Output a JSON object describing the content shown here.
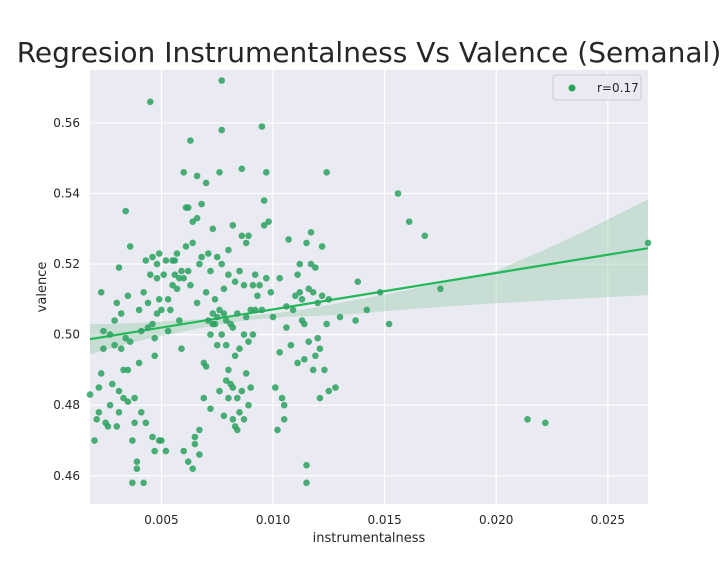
{
  "chart_data": {
    "type": "scatter",
    "title": "Regresion Instrumentalness Vs Valence (Semanal)",
    "xlabel": "instrumentalness",
    "ylabel": "valence",
    "xlim": [
      0.0018,
      0.0268
    ],
    "ylim": [
      0.452,
      0.575
    ],
    "xticks": [
      0.005,
      0.01,
      0.015,
      0.02,
      0.025
    ],
    "xtick_labels": [
      "0.005",
      "0.010",
      "0.015",
      "0.020",
      "0.025"
    ],
    "yticks": [
      0.46,
      0.48,
      0.5,
      0.52,
      0.54,
      0.56
    ],
    "ytick_labels": [
      "0.46",
      "0.48",
      "0.50",
      "0.52",
      "0.54",
      "0.56"
    ],
    "grid": true,
    "legend_position": "top-right",
    "point_color": "#2ca25f",
    "line_color": "#21b957",
    "band_color": "#9fcfb0",
    "series": [
      {
        "name": "r=0.17",
        "points": [
          [
            0.0018,
            0.483
          ],
          [
            0.002,
            0.47
          ],
          [
            0.0021,
            0.476
          ],
          [
            0.0022,
            0.478
          ],
          [
            0.0022,
            0.485
          ],
          [
            0.0023,
            0.489
          ],
          [
            0.0023,
            0.512
          ],
          [
            0.0024,
            0.496
          ],
          [
            0.0024,
            0.501
          ],
          [
            0.0025,
            0.475
          ],
          [
            0.0026,
            0.474
          ],
          [
            0.0027,
            0.48
          ],
          [
            0.0027,
            0.5
          ],
          [
            0.0028,
            0.486
          ],
          [
            0.0029,
            0.497
          ],
          [
            0.0029,
            0.504
          ],
          [
            0.003,
            0.474
          ],
          [
            0.003,
            0.509
          ],
          [
            0.0031,
            0.478
          ],
          [
            0.0031,
            0.484
          ],
          [
            0.0031,
            0.519
          ],
          [
            0.0032,
            0.496
          ],
          [
            0.0032,
            0.506
          ],
          [
            0.0033,
            0.482
          ],
          [
            0.0033,
            0.49
          ],
          [
            0.0034,
            0.499
          ],
          [
            0.0034,
            0.535
          ],
          [
            0.0035,
            0.481
          ],
          [
            0.0035,
            0.49
          ],
          [
            0.0035,
            0.511
          ],
          [
            0.0036,
            0.498
          ],
          [
            0.0036,
            0.525
          ],
          [
            0.0037,
            0.458
          ],
          [
            0.0037,
            0.47
          ],
          [
            0.0038,
            0.475
          ],
          [
            0.0038,
            0.482
          ],
          [
            0.0039,
            0.462
          ],
          [
            0.0039,
            0.464
          ],
          [
            0.004,
            0.492
          ],
          [
            0.004,
            0.507
          ],
          [
            0.0041,
            0.478
          ],
          [
            0.0041,
            0.501
          ],
          [
            0.0042,
            0.458
          ],
          [
            0.0042,
            0.512
          ],
          [
            0.0043,
            0.475
          ],
          [
            0.0043,
            0.521
          ],
          [
            0.0044,
            0.502
          ],
          [
            0.0044,
            0.509
          ],
          [
            0.0045,
            0.517
          ],
          [
            0.0045,
            0.566
          ],
          [
            0.0046,
            0.471
          ],
          [
            0.0046,
            0.503
          ],
          [
            0.0046,
            0.522
          ],
          [
            0.0047,
            0.467
          ],
          [
            0.0047,
            0.494
          ],
          [
            0.0047,
            0.499
          ],
          [
            0.0048,
            0.506
          ],
          [
            0.0048,
            0.516
          ],
          [
            0.0048,
            0.52
          ],
          [
            0.0049,
            0.47
          ],
          [
            0.0049,
            0.51
          ],
          [
            0.0049,
            0.523
          ],
          [
            0.005,
            0.47
          ],
          [
            0.005,
            0.507
          ],
          [
            0.0051,
            0.517
          ],
          [
            0.0052,
            0.467
          ],
          [
            0.0052,
            0.521
          ],
          [
            0.0053,
            0.501
          ],
          [
            0.0053,
            0.51
          ],
          [
            0.0054,
            0.507
          ],
          [
            0.0055,
            0.514
          ],
          [
            0.0055,
            0.521
          ],
          [
            0.0056,
            0.517
          ],
          [
            0.0056,
            0.521
          ],
          [
            0.0057,
            0.513
          ],
          [
            0.0057,
            0.523
          ],
          [
            0.0058,
            0.504
          ],
          [
            0.0058,
            0.516
          ],
          [
            0.0059,
            0.496
          ],
          [
            0.0059,
            0.518
          ],
          [
            0.006,
            0.467
          ],
          [
            0.006,
            0.516
          ],
          [
            0.006,
            0.546
          ],
          [
            0.0061,
            0.525
          ],
          [
            0.0061,
            0.536
          ],
          [
            0.0062,
            0.464
          ],
          [
            0.0062,
            0.518
          ],
          [
            0.0062,
            0.536
          ],
          [
            0.0063,
            0.555
          ],
          [
            0.0063,
            0.514
          ],
          [
            0.0064,
            0.462
          ],
          [
            0.0064,
            0.526
          ],
          [
            0.0064,
            0.532
          ],
          [
            0.0065,
            0.469
          ],
          [
            0.0065,
            0.471
          ],
          [
            0.0066,
            0.509
          ],
          [
            0.0066,
            0.533
          ],
          [
            0.0066,
            0.545
          ],
          [
            0.0067,
            0.466
          ],
          [
            0.0067,
            0.473
          ],
          [
            0.0067,
            0.52
          ],
          [
            0.0068,
            0.522
          ],
          [
            0.0068,
            0.537
          ],
          [
            0.0069,
            0.482
          ],
          [
            0.0069,
            0.492
          ],
          [
            0.007,
            0.491
          ],
          [
            0.007,
            0.512
          ],
          [
            0.007,
            0.543
          ],
          [
            0.0071,
            0.504
          ],
          [
            0.0071,
            0.523
          ],
          [
            0.0072,
            0.479
          ],
          [
            0.0072,
            0.5
          ],
          [
            0.0072,
            0.518
          ],
          [
            0.0073,
            0.503
          ],
          [
            0.0073,
            0.506
          ],
          [
            0.0073,
            0.53
          ],
          [
            0.0074,
            0.503
          ],
          [
            0.0074,
            0.51
          ],
          [
            0.0075,
            0.497
          ],
          [
            0.0075,
            0.505
          ],
          [
            0.0075,
            0.522
          ],
          [
            0.0076,
            0.484
          ],
          [
            0.0076,
            0.507
          ],
          [
            0.0076,
            0.546
          ],
          [
            0.0077,
            0.5
          ],
          [
            0.0077,
            0.52
          ],
          [
            0.0077,
            0.558
          ],
          [
            0.0077,
            0.572
          ],
          [
            0.0078,
            0.477
          ],
          [
            0.0078,
            0.506
          ],
          [
            0.0078,
            0.513
          ],
          [
            0.0079,
            0.487
          ],
          [
            0.0079,
            0.497
          ],
          [
            0.0079,
            0.504
          ],
          [
            0.008,
            0.482
          ],
          [
            0.008,
            0.49
          ],
          [
            0.008,
            0.517
          ],
          [
            0.008,
            0.524
          ],
          [
            0.0081,
            0.486
          ],
          [
            0.0081,
            0.503
          ],
          [
            0.0082,
            0.476
          ],
          [
            0.0082,
            0.485
          ],
          [
            0.0082,
            0.502
          ],
          [
            0.0082,
            0.531
          ],
          [
            0.0083,
            0.474
          ],
          [
            0.0083,
            0.494
          ],
          [
            0.0083,
            0.515
          ],
          [
            0.0084,
            0.473
          ],
          [
            0.0084,
            0.482
          ],
          [
            0.0084,
            0.506
          ],
          [
            0.0085,
            0.478
          ],
          [
            0.0085,
            0.496
          ],
          [
            0.0085,
            0.518
          ],
          [
            0.0086,
            0.484
          ],
          [
            0.0086,
            0.528
          ],
          [
            0.0086,
            0.547
          ],
          [
            0.0087,
            0.476
          ],
          [
            0.0087,
            0.5
          ],
          [
            0.0087,
            0.514
          ],
          [
            0.0088,
            0.489
          ],
          [
            0.0088,
            0.505
          ],
          [
            0.0088,
            0.526
          ],
          [
            0.0089,
            0.48
          ],
          [
            0.0089,
            0.498
          ],
          [
            0.0089,
            0.528
          ],
          [
            0.009,
            0.485
          ],
          [
            0.009,
            0.507
          ],
          [
            0.0091,
            0.5
          ],
          [
            0.0091,
            0.514
          ],
          [
            0.0092,
            0.507
          ],
          [
            0.0092,
            0.517
          ],
          [
            0.0093,
            0.511
          ],
          [
            0.0094,
            0.514
          ],
          [
            0.0095,
            0.559
          ],
          [
            0.0095,
            0.507
          ],
          [
            0.0096,
            0.538
          ],
          [
            0.0096,
            0.531
          ],
          [
            0.0097,
            0.546
          ],
          [
            0.0097,
            0.516
          ],
          [
            0.0098,
            0.532
          ],
          [
            0.0099,
            0.512
          ],
          [
            0.01,
            0.505
          ],
          [
            0.0101,
            0.485
          ],
          [
            0.0102,
            0.473
          ],
          [
            0.0103,
            0.495
          ],
          [
            0.0103,
            0.516
          ],
          [
            0.0104,
            0.482
          ],
          [
            0.0105,
            0.48
          ],
          [
            0.0105,
            0.476
          ],
          [
            0.0106,
            0.502
          ],
          [
            0.0106,
            0.508
          ],
          [
            0.0107,
            0.527
          ],
          [
            0.0108,
            0.497
          ],
          [
            0.0109,
            0.507
          ],
          [
            0.011,
            0.511
          ],
          [
            0.0111,
            0.492
          ],
          [
            0.0111,
            0.517
          ],
          [
            0.0112,
            0.512
          ],
          [
            0.0112,
            0.52
          ],
          [
            0.0113,
            0.504
          ],
          [
            0.0113,
            0.51
          ],
          [
            0.0114,
            0.493
          ],
          [
            0.0114,
            0.503
          ],
          [
            0.0115,
            0.458
          ],
          [
            0.0115,
            0.463
          ],
          [
            0.0115,
            0.526
          ],
          [
            0.0116,
            0.498
          ],
          [
            0.0116,
            0.513
          ],
          [
            0.0117,
            0.52
          ],
          [
            0.0117,
            0.529
          ],
          [
            0.0118,
            0.512
          ],
          [
            0.0118,
            0.49
          ],
          [
            0.0119,
            0.494
          ],
          [
            0.0119,
            0.519
          ],
          [
            0.012,
            0.499
          ],
          [
            0.012,
            0.509
          ],
          [
            0.0121,
            0.482
          ],
          [
            0.0121,
            0.496
          ],
          [
            0.0122,
            0.511
          ],
          [
            0.0122,
            0.525
          ],
          [
            0.0123,
            0.49
          ],
          [
            0.0124,
            0.503
          ],
          [
            0.0124,
            0.546
          ],
          [
            0.0125,
            0.484
          ],
          [
            0.0125,
            0.51
          ],
          [
            0.0128,
            0.485
          ],
          [
            0.013,
            0.505
          ],
          [
            0.0137,
            0.504
          ],
          [
            0.0138,
            0.515
          ],
          [
            0.0142,
            0.507
          ],
          [
            0.0148,
            0.512
          ],
          [
            0.0152,
            0.503
          ],
          [
            0.0156,
            0.54
          ],
          [
            0.0161,
            0.532
          ],
          [
            0.0168,
            0.528
          ],
          [
            0.0175,
            0.513
          ],
          [
            0.0214,
            0.476
          ],
          [
            0.0222,
            0.475
          ],
          [
            0.0268,
            0.526
          ]
        ]
      }
    ],
    "regression": {
      "line": [
        [
          0.0018,
          0.4987
        ],
        [
          0.0268,
          0.5245
        ]
      ],
      "band": {
        "x": [
          0.0018,
          0.003,
          0.0045,
          0.006,
          0.0075,
          0.009,
          0.0105,
          0.012,
          0.0135,
          0.015,
          0.0165,
          0.018,
          0.02,
          0.022,
          0.024,
          0.0268
        ],
        "lower": [
          0.4944,
          0.4966,
          0.499,
          0.5009,
          0.5028,
          0.5042,
          0.505,
          0.5053,
          0.5058,
          0.5066,
          0.5074,
          0.5081,
          0.5089,
          0.5096,
          0.5103,
          0.5112
        ],
        "upper": [
          0.503,
          0.5031,
          0.5035,
          0.5041,
          0.5046,
          0.5054,
          0.5064,
          0.5078,
          0.5096,
          0.5113,
          0.5133,
          0.5152,
          0.5181,
          0.5236,
          0.5294,
          0.5383
        ]
      }
    }
  }
}
